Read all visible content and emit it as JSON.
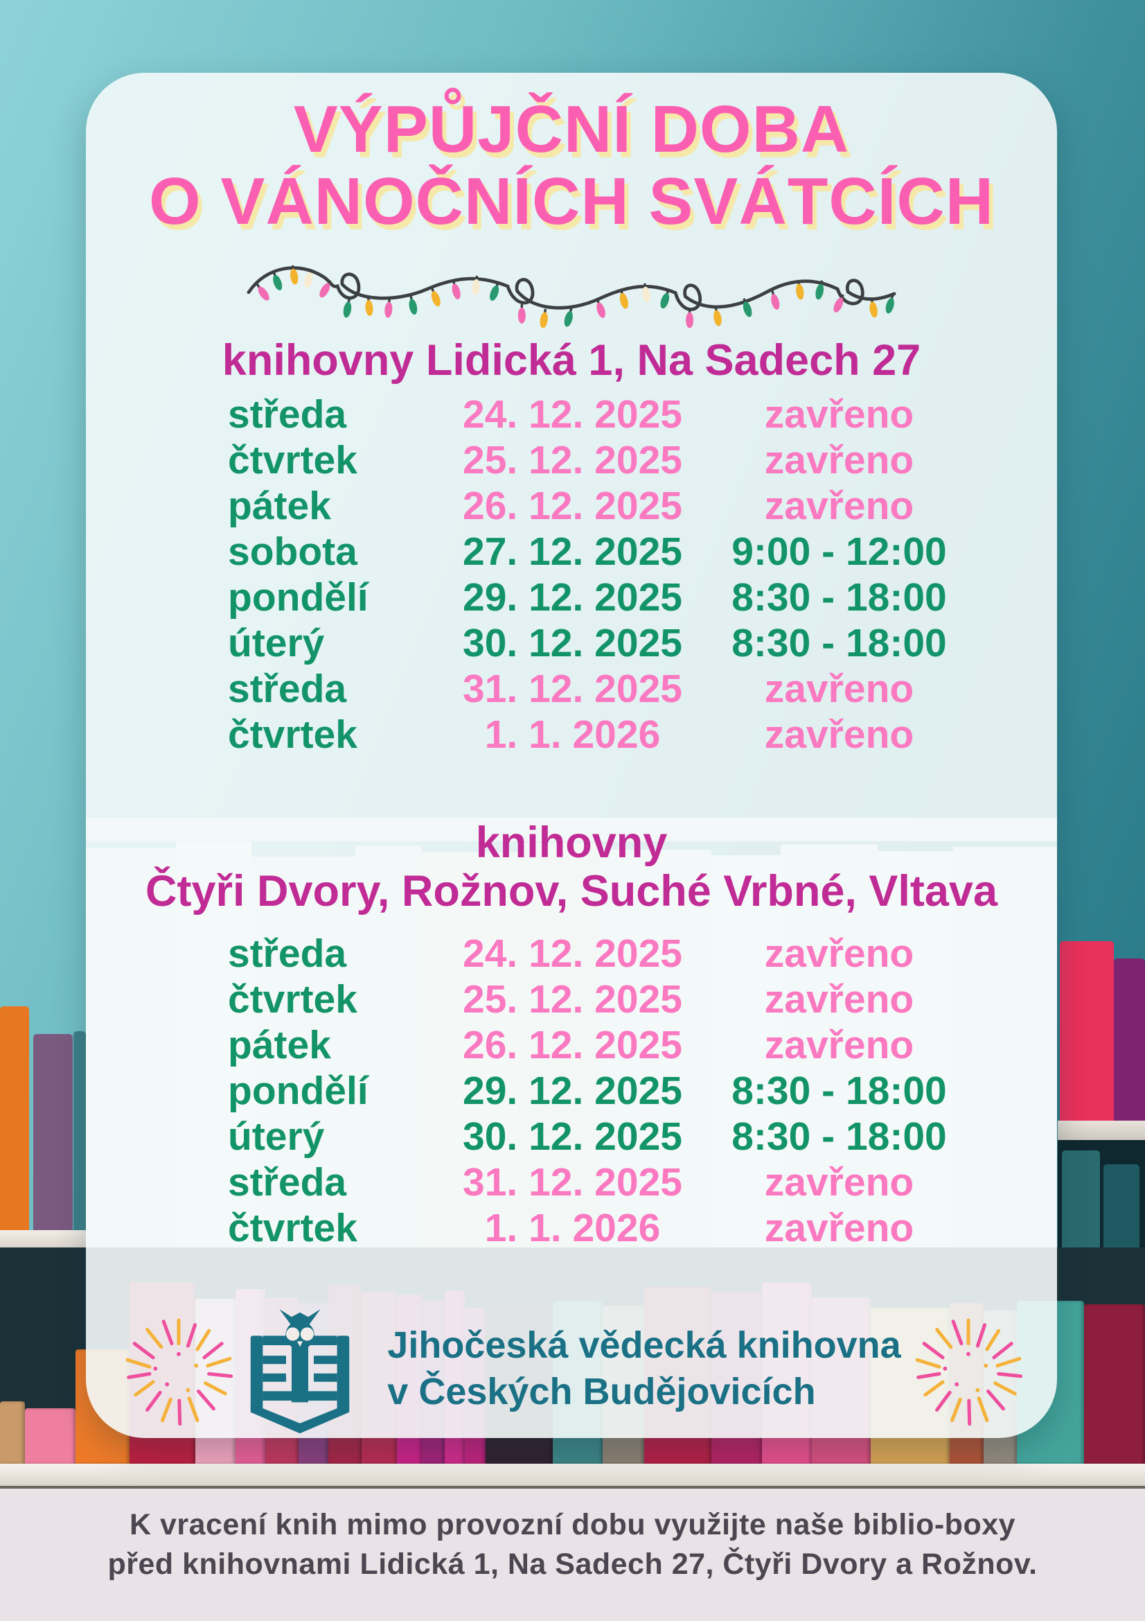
{
  "colors": {
    "title_pink": "#fb5fb2",
    "title_shadow": "#f5e8a8",
    "heading_magenta": "#c02b95",
    "green": "#139468",
    "pink": "#fa79c0",
    "logo_teal": "#1a7085",
    "footer_text": "#4b4650",
    "wire": "#3c4043",
    "bulb_pink": "#f26cb4",
    "bulb_green": "#27996d",
    "bulb_yellow": "#f3b32c",
    "bulb_cream": "#f7ecd2",
    "firework_yellow": "#f4b23a",
    "firework_pink": "#ee4f9e"
  },
  "title": {
    "line1": "VÝPŮJČNÍ DOBA",
    "line2": "O VÁNOČNÍCH SVÁTCÍCH"
  },
  "section1": {
    "header": "knihovny Lidická 1, Na Sadech 27",
    "rows": [
      {
        "day": "středa",
        "date": "24. 12. 2025",
        "hours": "zavřeno",
        "status": "closed"
      },
      {
        "day": "čtvrtek",
        "date": "25. 12. 2025",
        "hours": "zavřeno",
        "status": "closed"
      },
      {
        "day": "pátek",
        "date": "26. 12. 2025",
        "hours": "zavřeno",
        "status": "closed"
      },
      {
        "day": "sobota",
        "date": "27. 12. 2025",
        "hours": "9:00 - 12:00",
        "status": "open"
      },
      {
        "day": "pondělí",
        "date": "29. 12. 2025",
        "hours": "8:30 - 18:00",
        "status": "open"
      },
      {
        "day": "úterý",
        "date": "30. 12. 2025",
        "hours": "8:30 - 18:00",
        "status": "open"
      },
      {
        "day": "středa",
        "date": "31. 12. 2025",
        "hours": "zavřeno",
        "status": "closed"
      },
      {
        "day": "čtvrtek",
        "date": "1. 1. 2026",
        "hours": "zavřeno",
        "status": "closed"
      }
    ]
  },
  "section2": {
    "header_line1": "knihovny",
    "header_line2": "Čtyři Dvory, Rožnov, Suché Vrbné, Vltava",
    "rows": [
      {
        "day": "středa",
        "date": "24. 12. 2025",
        "hours": "zavřeno",
        "status": "closed"
      },
      {
        "day": "čtvrtek",
        "date": "25. 12. 2025",
        "hours": "zavřeno",
        "status": "closed"
      },
      {
        "day": "pátek",
        "date": "26. 12. 2025",
        "hours": "zavřeno",
        "status": "closed"
      },
      {
        "day": "pondělí",
        "date": "29. 12. 2025",
        "hours": "8:30 - 18:00",
        "status": "open"
      },
      {
        "day": "úterý",
        "date": "30. 12. 2025",
        "hours": "8:30 - 18:00",
        "status": "open"
      },
      {
        "day": "středa",
        "date": "31. 12. 2025",
        "hours": "zavřeno",
        "status": "closed"
      },
      {
        "day": "čtvrtek",
        "date": "1. 1. 2026",
        "hours": "zavřeno",
        "status": "closed"
      }
    ]
  },
  "logo": {
    "name_line1": "Jihočeská vědecká knihovna",
    "name_line2": "v Českých Budějovicích"
  },
  "footer": {
    "line1": "K vracení knih mimo provozní dobu využijte naše biblio-boxy",
    "line2": "před knihovnami Lidická 1, Na Sadech 27, Čtyři Dvory a Rožnov."
  }
}
